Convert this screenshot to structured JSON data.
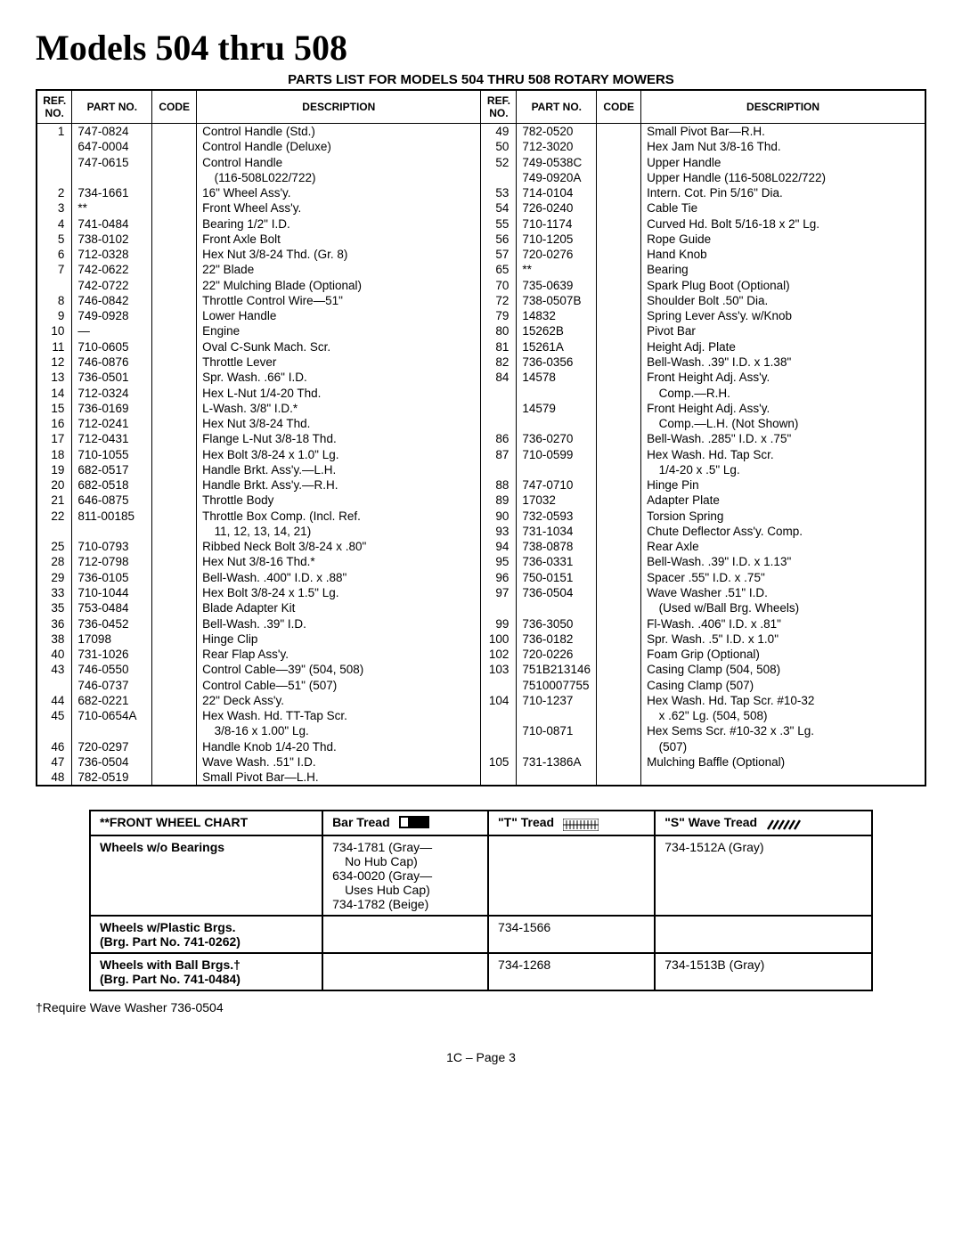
{
  "title": "Models 504 thru 508",
  "subtitle": "PARTS LIST FOR MODELS 504 THRU 508 ROTARY MOWERS",
  "headers": {
    "ref": "REF. NO.",
    "part": "PART NO.",
    "code": "CODE",
    "desc": "DESCRIPTION"
  },
  "left_rows": [
    {
      "ref": "1",
      "part": "747-0824",
      "desc": "Control Handle (Std.)"
    },
    {
      "ref": "",
      "part": "647-0004",
      "desc": "Control Handle (Deluxe)"
    },
    {
      "ref": "",
      "part": "747-0615",
      "desc": "Control Handle"
    },
    {
      "ref": "",
      "part": "",
      "desc": " (116-508L022/722)"
    },
    {
      "ref": "2",
      "part": "734-1661",
      "desc": "16\" Wheel Ass'y."
    },
    {
      "ref": "3",
      "part": "**",
      "desc": "Front Wheel Ass'y."
    },
    {
      "ref": "4",
      "part": "741-0484",
      "desc": "Bearing 1/2\" I.D."
    },
    {
      "ref": "5",
      "part": "738-0102",
      "desc": "Front Axle Bolt"
    },
    {
      "ref": "6",
      "part": "712-0328",
      "desc": "Hex Nut 3/8-24 Thd. (Gr. 8)"
    },
    {
      "ref": "7",
      "part": "742-0622",
      "desc": "22\" Blade"
    },
    {
      "ref": "",
      "part": "742-0722",
      "desc": "22\" Mulching Blade (Optional)"
    },
    {
      "ref": "8",
      "part": "746-0842",
      "desc": "Throttle Control Wire—51\""
    },
    {
      "ref": "9",
      "part": "749-0928",
      "desc": "Lower Handle"
    },
    {
      "ref": "10",
      "part": "—",
      "desc": "Engine"
    },
    {
      "ref": "11",
      "part": "710-0605",
      "desc": "Oval C-Sunk Mach. Scr."
    },
    {
      "ref": "12",
      "part": "746-0876",
      "desc": "Throttle Lever"
    },
    {
      "ref": "13",
      "part": "736-0501",
      "desc": "Spr. Wash. .66\" I.D."
    },
    {
      "ref": "14",
      "part": "712-0324",
      "desc": "Hex L-Nut 1/4-20 Thd."
    },
    {
      "ref": "15",
      "part": "736-0169",
      "desc": "L-Wash. 3/8\" I.D.*"
    },
    {
      "ref": "16",
      "part": "712-0241",
      "desc": "Hex Nut 3/8-24 Thd."
    },
    {
      "ref": "17",
      "part": "712-0431",
      "desc": "Flange L-Nut 3/8-18 Thd."
    },
    {
      "ref": "18",
      "part": "710-1055",
      "desc": "Hex Bolt 3/8-24 x 1.0\" Lg."
    },
    {
      "ref": "19",
      "part": "682-0517",
      "desc": "Handle Brkt. Ass'y.—L.H."
    },
    {
      "ref": "20",
      "part": "682-0518",
      "desc": "Handle Brkt. Ass'y.—R.H."
    },
    {
      "ref": "21",
      "part": "646-0875",
      "desc": "Throttle Body"
    },
    {
      "ref": "22",
      "part": "811-00185",
      "desc": "Throttle Box Comp. (Incl. Ref."
    },
    {
      "ref": "",
      "part": "",
      "desc": " 11, 12, 13, 14, 21)"
    },
    {
      "ref": "25",
      "part": "710-0793",
      "desc": "Ribbed Neck Bolt 3/8-24 x .80\""
    },
    {
      "ref": "28",
      "part": "712-0798",
      "desc": "Hex Nut 3/8-16 Thd.*"
    },
    {
      "ref": "29",
      "part": "736-0105",
      "desc": "Bell-Wash. .400\" I.D. x .88\""
    },
    {
      "ref": "33",
      "part": "710-1044",
      "desc": "Hex Bolt 3/8-24 x 1.5\" Lg."
    },
    {
      "ref": "35",
      "part": "753-0484",
      "desc": "Blade Adapter Kit"
    },
    {
      "ref": "36",
      "part": "736-0452",
      "desc": "Bell-Wash. .39\" I.D."
    },
    {
      "ref": "38",
      "part": "17098",
      "desc": "Hinge Clip"
    },
    {
      "ref": "40",
      "part": "731-1026",
      "desc": "Rear Flap Ass'y."
    },
    {
      "ref": "43",
      "part": "746-0550",
      "desc": "Control Cable—39\" (504, 508)"
    },
    {
      "ref": "",
      "part": "746-0737",
      "desc": "Control Cable—51\" (507)"
    },
    {
      "ref": "44",
      "part": "682-0221",
      "desc": "22\" Deck Ass'y."
    },
    {
      "ref": "45",
      "part": "710-0654A",
      "desc": "Hex Wash. Hd. TT-Tap Scr."
    },
    {
      "ref": "",
      "part": "",
      "desc": " 3/8-16 x 1.00\" Lg."
    },
    {
      "ref": "46",
      "part": "720-0297",
      "desc": "Handle Knob 1/4-20 Thd."
    },
    {
      "ref": "47",
      "part": "736-0504",
      "desc": "Wave Wash. .51\" I.D."
    },
    {
      "ref": "48",
      "part": "782-0519",
      "desc": "Small Pivot Bar—L.H."
    }
  ],
  "right_rows": [
    {
      "ref": "49",
      "part": "782-0520",
      "desc": "Small Pivot Bar—R.H."
    },
    {
      "ref": "50",
      "part": "712-3020",
      "desc": "Hex Jam Nut 3/8-16 Thd."
    },
    {
      "ref": "52",
      "part": "749-0538C",
      "desc": "Upper Handle"
    },
    {
      "ref": "",
      "part": "749-0920A",
      "desc": "Upper Handle (116-508L022/722)"
    },
    {
      "ref": "53",
      "part": "714-0104",
      "desc": "Intern. Cot. Pin 5/16\" Dia."
    },
    {
      "ref": "54",
      "part": "726-0240",
      "desc": "Cable Tie"
    },
    {
      "ref": "55",
      "part": "710-1174",
      "desc": "Curved Hd. Bolt 5/16-18 x 2\" Lg."
    },
    {
      "ref": "56",
      "part": "710-1205",
      "desc": "Rope Guide"
    },
    {
      "ref": "57",
      "part": "720-0276",
      "desc": "Hand Knob"
    },
    {
      "ref": "65",
      "part": "**",
      "desc": "Bearing"
    },
    {
      "ref": "70",
      "part": "735-0639",
      "desc": "Spark Plug Boot (Optional)"
    },
    {
      "ref": "72",
      "part": "738-0507B",
      "desc": "Shoulder Bolt .50\" Dia."
    },
    {
      "ref": "79",
      "part": "14832",
      "desc": "Spring Lever Ass'y. w/Knob"
    },
    {
      "ref": "80",
      "part": "15262B",
      "desc": "Pivot Bar"
    },
    {
      "ref": "81",
      "part": "15261A",
      "desc": "Height Adj. Plate"
    },
    {
      "ref": "82",
      "part": "736-0356",
      "desc": "Bell-Wash. .39\" I.D. x 1.38\""
    },
    {
      "ref": "84",
      "part": "14578",
      "desc": "Front Height Adj. Ass'y."
    },
    {
      "ref": "",
      "part": "",
      "desc": " Comp.—R.H."
    },
    {
      "ref": "",
      "part": "14579",
      "desc": "Front Height Adj. Ass'y."
    },
    {
      "ref": "",
      "part": "",
      "desc": " Comp.—L.H. (Not Shown)"
    },
    {
      "ref": "86",
      "part": "736-0270",
      "desc": "Bell-Wash. .285\" I.D. x .75\""
    },
    {
      "ref": "87",
      "part": "710-0599",
      "desc": "Hex Wash. Hd. Tap Scr."
    },
    {
      "ref": "",
      "part": "",
      "desc": " 1/4-20 x .5\" Lg."
    },
    {
      "ref": "88",
      "part": "747-0710",
      "desc": "Hinge Pin"
    },
    {
      "ref": "89",
      "part": "17032",
      "desc": "Adapter Plate"
    },
    {
      "ref": "90",
      "part": "732-0593",
      "desc": "Torsion Spring"
    },
    {
      "ref": "93",
      "part": "731-1034",
      "desc": "Chute Deflector Ass'y. Comp."
    },
    {
      "ref": "94",
      "part": "738-0878",
      "desc": "Rear Axle"
    },
    {
      "ref": "95",
      "part": "736-0331",
      "desc": "Bell-Wash. .39\" I.D. x 1.13\""
    },
    {
      "ref": "96",
      "part": "750-0151",
      "desc": "Spacer .55\" I.D. x .75\""
    },
    {
      "ref": "97",
      "part": "736-0504",
      "desc": "Wave Washer .51\" I.D."
    },
    {
      "ref": "",
      "part": "",
      "desc": " (Used w/Ball Brg. Wheels)"
    },
    {
      "ref": "99",
      "part": "736-3050",
      "desc": "Fl-Wash. .406\" I.D. x .81\""
    },
    {
      "ref": "100",
      "part": "736-0182",
      "desc": "Spr. Wash. .5\" I.D. x 1.0\""
    },
    {
      "ref": "102",
      "part": "720-0226",
      "desc": "Foam Grip (Optional)"
    },
    {
      "ref": "103",
      "part": "751B213146",
      "desc": "Casing Clamp (504, 508)"
    },
    {
      "ref": "",
      "part": "7510007755",
      "desc": "Casing Clamp (507)"
    },
    {
      "ref": "104",
      "part": "710-1237",
      "desc": "Hex Wash. Hd. Tap Scr. #10-32"
    },
    {
      "ref": "",
      "part": "",
      "desc": " x .62\" Lg. (504, 508)"
    },
    {
      "ref": "",
      "part": "710-0871",
      "desc": "Hex Sems Scr. #10-32 x .3\" Lg."
    },
    {
      "ref": "",
      "part": "",
      "desc": " (507)"
    },
    {
      "ref": "105",
      "part": "731-1386A",
      "desc": "Mulching Baffle (Optional)"
    },
    {
      "ref": "",
      "part": "",
      "desc": ""
    }
  ],
  "wheel_chart": {
    "title": "**FRONT WHEEL CHART",
    "col_bar": "Bar Tread",
    "col_t": "\"T\" Tread",
    "col_s": "\"S\" Wave Tread",
    "rows": [
      {
        "label": "Wheels w/o Bearings",
        "bar": "734-1781 (Gray—\n No Hub Cap)\n634-0020 (Gray—\n Uses Hub Cap)\n734-1782 (Beige)",
        "t": "",
        "s": "734-1512A (Gray)"
      },
      {
        "label": "Wheels w/Plastic Brgs.\n(Brg. Part No. 741-0262)",
        "bar": "",
        "t": "734-1566",
        "s": ""
      },
      {
        "label": "Wheels with Ball Brgs.†\n(Brg. Part No. 741-0484)",
        "bar": "",
        "t": "734-1268",
        "s": "734-1513B (Gray)"
      }
    ]
  },
  "footnote": "†Require Wave Washer 736-0504",
  "pagenum": "1C – Page 3"
}
